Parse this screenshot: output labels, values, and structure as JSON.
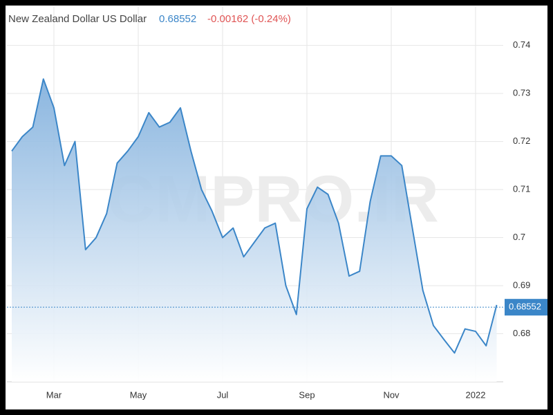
{
  "chart_data": {
    "type": "area",
    "title": "New Zealand Dollar US Dollar",
    "last": 0.68552,
    "change_text": "-0.00162 (-0.24%)",
    "watermark": "CMPRO.IR",
    "color": "#3b86c8",
    "categories": [
      null,
      null,
      null,
      null,
      "Mar",
      null,
      null,
      null,
      null,
      null,
      null,
      null,
      "May",
      null,
      null,
      null,
      null,
      null,
      null,
      null,
      "Jul",
      null,
      null,
      null,
      null,
      null,
      null,
      null,
      "Sep",
      null,
      null,
      null,
      null,
      null,
      null,
      null,
      "Nov",
      null,
      null,
      null,
      null,
      null,
      null,
      null,
      "2022",
      null,
      null
    ],
    "values": [
      0.718,
      0.721,
      0.723,
      0.733,
      0.727,
      0.715,
      0.72,
      0.6975,
      0.7,
      0.705,
      0.7155,
      0.718,
      0.721,
      0.726,
      0.723,
      0.724,
      0.727,
      0.718,
      0.71,
      0.7055,
      0.7,
      0.702,
      0.696,
      0.699,
      0.702,
      0.703,
      0.69,
      0.684,
      0.706,
      0.7105,
      0.709,
      0.703,
      0.692,
      0.693,
      0.7075,
      0.717,
      0.717,
      0.715,
      0.702,
      0.689,
      0.6817,
      0.6788,
      0.676,
      0.681,
      0.6805,
      0.6775,
      0.686
    ],
    "ylim": [
      0.67,
      0.748
    ],
    "yticks": [
      0.68,
      0.69,
      0.7,
      0.71,
      0.72,
      0.73,
      0.74
    ],
    "grid": true
  }
}
